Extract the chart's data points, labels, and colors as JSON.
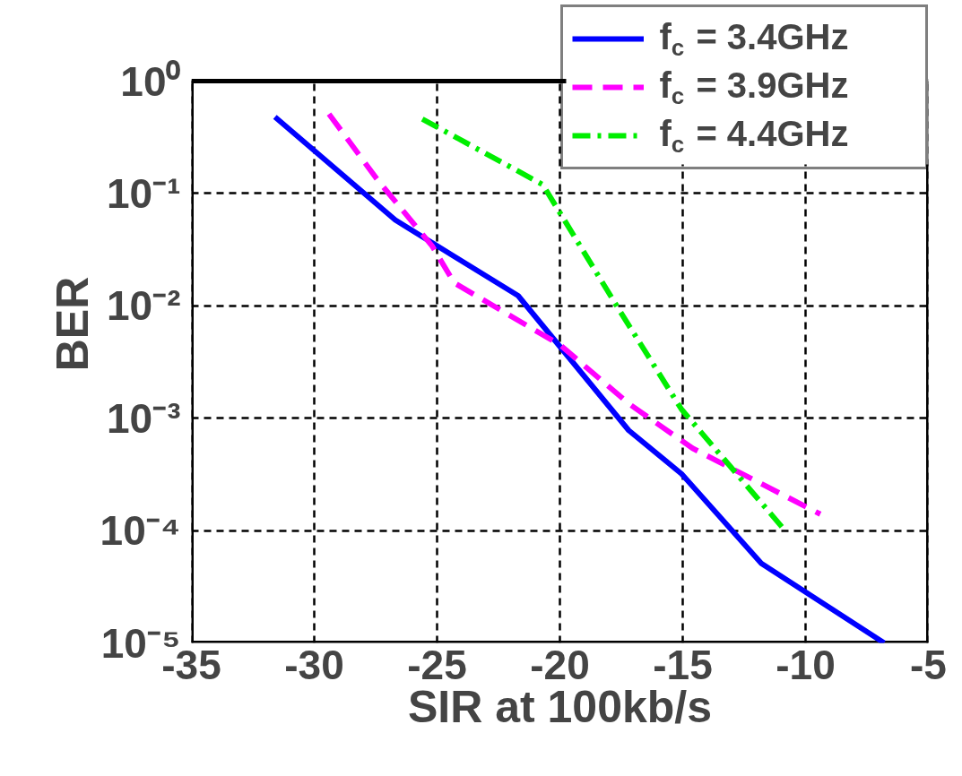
{
  "chart_data": {
    "type": "line",
    "xlabel": "SIR at 100kb/s",
    "ylabel": "BER",
    "log": "y",
    "grid": true,
    "legend": "top right",
    "xlim": [
      -35,
      -5
    ],
    "xticks": [
      -35,
      -30,
      -25,
      -20,
      -15,
      -10,
      -5
    ],
    "ylim": [
      1e-05,
      1
    ],
    "yticks": [
      {
        "value": 1,
        "label": "10⁰"
      },
      {
        "value": 0.1,
        "label": "10⁻¹"
      },
      {
        "value": 0.01,
        "label": "10⁻²"
      },
      {
        "value": 0.001,
        "label": "10⁻³"
      },
      {
        "value": 0.0001,
        "label": "10⁻⁴"
      },
      {
        "value": 1e-05,
        "label": "10⁻⁵"
      }
    ],
    "series": [
      {
        "name": "f$_{c}$ = 3.4GHz",
        "color": "#0000ff",
        "line_style": "solid",
        "x": [
          -31.6,
          -26.7,
          -21.7,
          -17.2,
          -15.05,
          -11.8,
          -6.8
        ],
        "values": [
          0.48,
          0.058,
          0.0123,
          0.00078,
          0.00032,
          5.1e-05,
          1e-05
        ]
      },
      {
        "name": "f$_{c}$ = 3.9GHz",
        "color": "#ff00ff",
        "line_style": "dashed",
        "x": [
          -29.4,
          -27.4,
          -25.2,
          -24.3,
          -20,
          -17.2,
          -14.6,
          -9.4
        ],
        "values": [
          0.51,
          0.13,
          0.034,
          0.016,
          0.0045,
          0.00135,
          0.00054,
          0.00014
        ]
      },
      {
        "name": "f$_{c}$ = 4.4GHz",
        "color": "#00ee00",
        "line_style": "dashdot",
        "x": [
          -25.6,
          -20.7,
          -17.6,
          -15.05,
          -10.8
        ],
        "values": [
          0.46,
          0.12,
          0.0093,
          0.0012,
          9.8e-05
        ]
      }
    ]
  }
}
